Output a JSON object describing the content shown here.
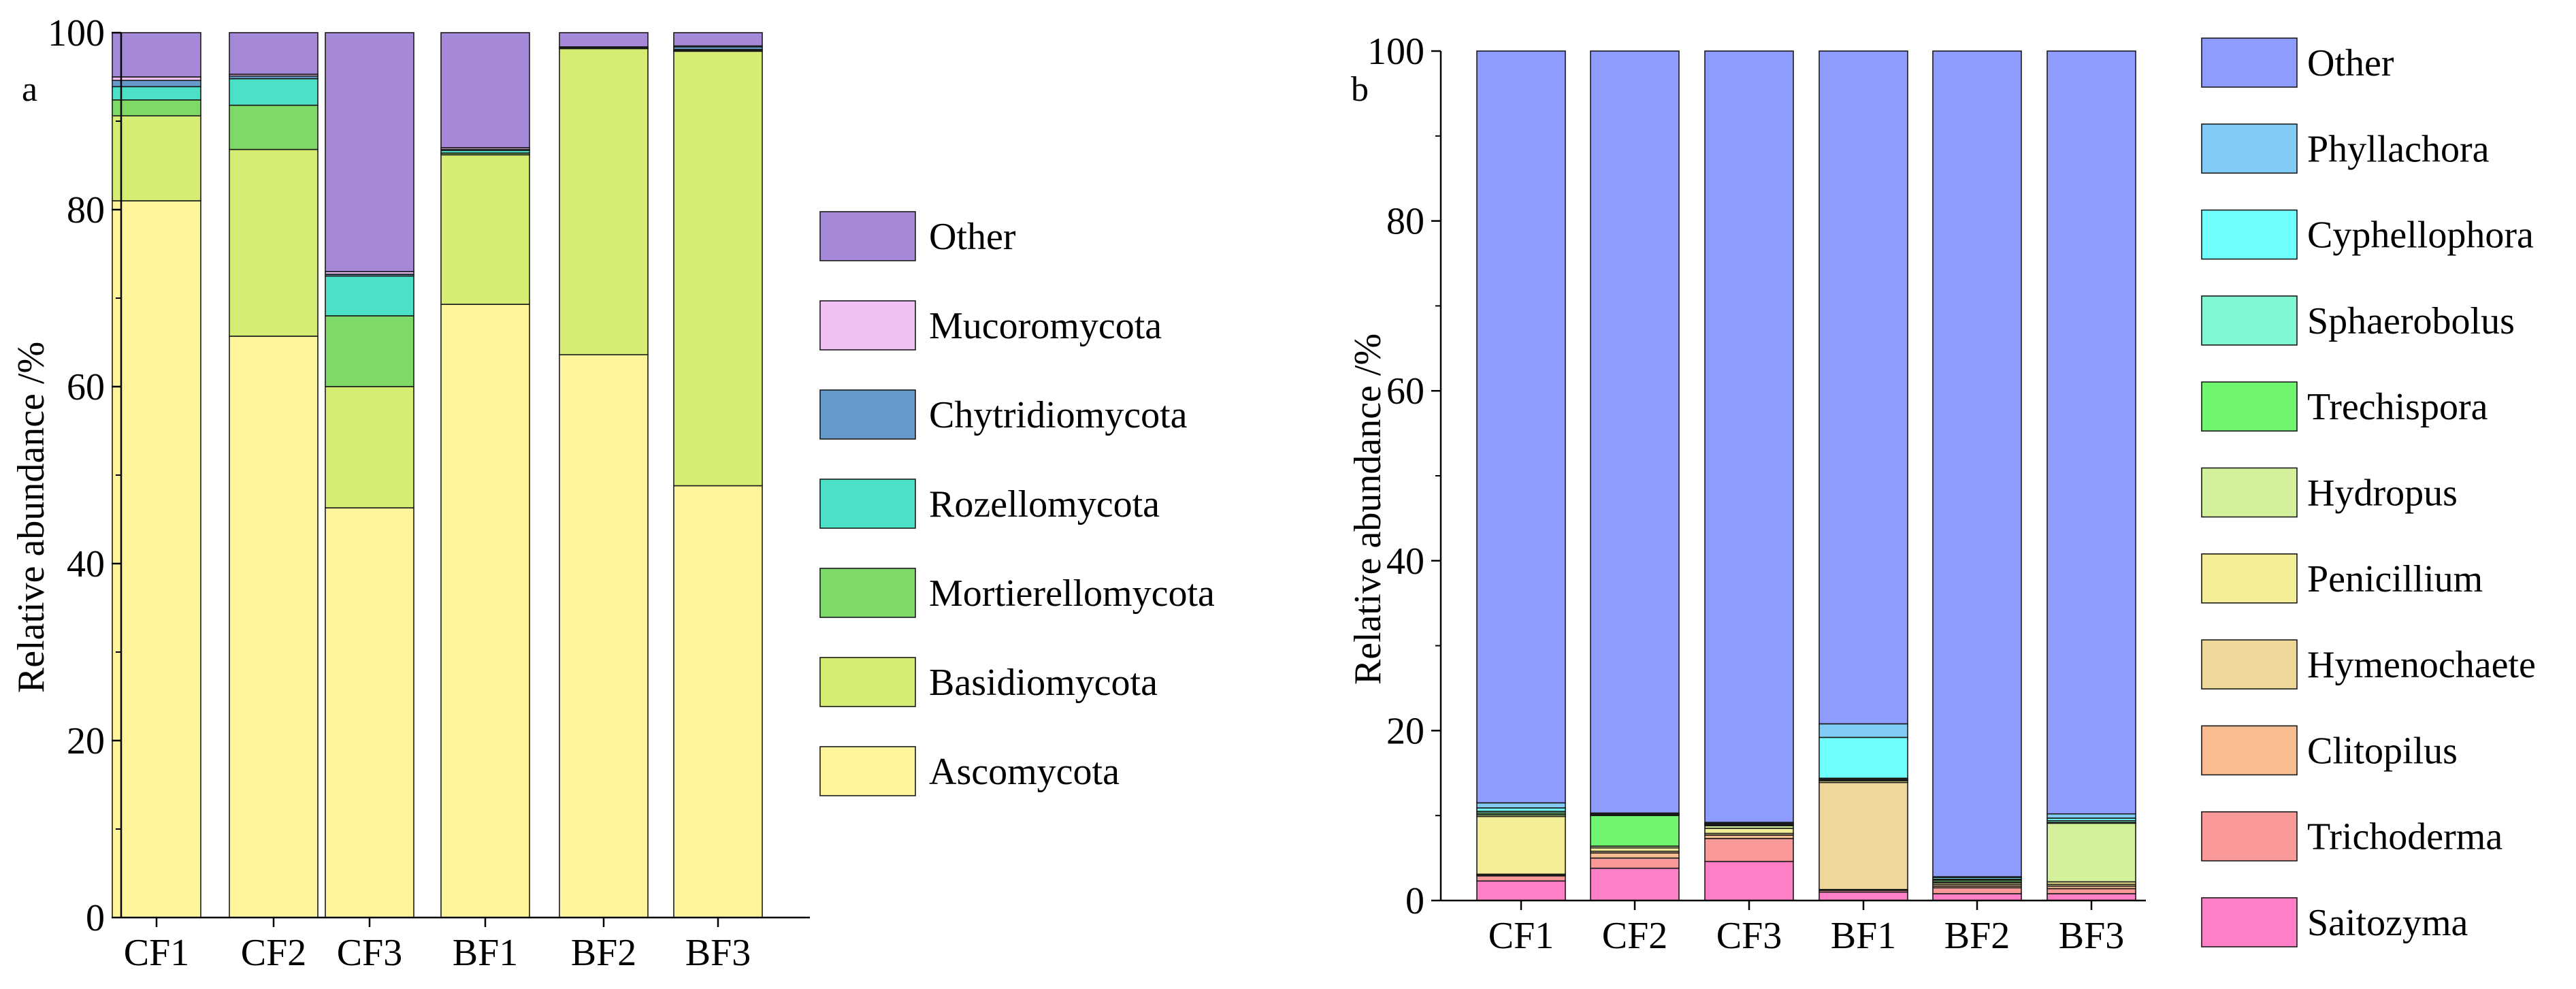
{
  "chart_data": [
    {
      "panel_label": "a",
      "type": "bar",
      "stacked": true,
      "categories": [
        "CF1",
        "CF2",
        "CF3",
        "BF1",
        "BF2",
        "BF3"
      ],
      "ylabel": "Relative abundance /%",
      "xlabel": "",
      "ylim": [
        0,
        100
      ],
      "yticks": [
        "0",
        "20",
        "40",
        "60",
        "80",
        "100"
      ],
      "legend_position": "right",
      "series": [
        {
          "name": "Ascomycota",
          "color": "#fff59d",
          "values": [
            81.0,
            65.7,
            46.3,
            69.3,
            63.6,
            48.8
          ]
        },
        {
          "name": "Basidiomycota",
          "color": "#d4ed72",
          "values": [
            9.6,
            21.1,
            13.7,
            16.9,
            34.6,
            49.1
          ]
        },
        {
          "name": "Mortierellomycota",
          "color": "#7fd966",
          "values": [
            1.8,
            5.0,
            8.0,
            0.2,
            0.0,
            0.1
          ]
        },
        {
          "name": "Rozellomycota",
          "color": "#4de0c8",
          "values": [
            1.5,
            3.0,
            4.5,
            0.3,
            0.0,
            0.1
          ]
        },
        {
          "name": "Chytridiomycota",
          "color": "#6699cc",
          "values": [
            0.7,
            0.3,
            0.2,
            0.1,
            0.1,
            0.3
          ]
        },
        {
          "name": "Mucoromycota",
          "color": "#f0c0f5",
          "values": [
            0.4,
            0.2,
            0.3,
            0.2,
            0.1,
            0.1
          ]
        },
        {
          "name": "Other",
          "color": "#a688d8",
          "values": [
            5.0,
            4.7,
            27.0,
            13.0,
            1.6,
            1.5
          ]
        }
      ]
    },
    {
      "panel_label": "b",
      "type": "bar",
      "stacked": true,
      "categories": [
        "CF1",
        "CF2",
        "CF3",
        "BF1",
        "BF2",
        "BF3"
      ],
      "ylabel": "Relative abundance /%",
      "xlabel": "",
      "ylim": [
        0,
        100
      ],
      "yticks": [
        "0",
        "20",
        "40",
        "60",
        "80",
        "100"
      ],
      "legend_position": "right",
      "series": [
        {
          "name": "Saitozyma",
          "color": "#ff7fc7",
          "values": [
            2.3,
            3.8,
            4.6,
            1.0,
            0.8,
            0.8
          ]
        },
        {
          "name": "Trichoderma",
          "color": "#fa9999",
          "values": [
            0.6,
            1.2,
            2.7,
            0.2,
            0.7,
            0.6
          ]
        },
        {
          "name": "Clitopilus",
          "color": "#f7bd91",
          "values": [
            0.1,
            0.6,
            0.4,
            0.1,
            0.2,
            0.3
          ]
        },
        {
          "name": "Hymenochaete",
          "color": "#efd699",
          "values": [
            0.1,
            0.2,
            0.2,
            12.6,
            0.2,
            0.2
          ]
        },
        {
          "name": "Penicillium",
          "color": "#f2ed96",
          "values": [
            6.8,
            0.4,
            0.6,
            0.2,
            0.2,
            0.3
          ]
        },
        {
          "name": "Hydropus",
          "color": "#d3f09a",
          "values": [
            0.2,
            0.2,
            0.3,
            0.1,
            0.1,
            6.9
          ]
        },
        {
          "name": "Trechispora",
          "color": "#70f570",
          "values": [
            0.2,
            3.6,
            0.1,
            0.1,
            0.2,
            0.1
          ]
        },
        {
          "name": "Sphaerobolus",
          "color": "#7ff7d2",
          "values": [
            0.2,
            0.1,
            0.1,
            0.1,
            0.1,
            0.2
          ]
        },
        {
          "name": "Cyphellophora",
          "color": "#70ffff",
          "values": [
            0.4,
            0.1,
            0.1,
            4.8,
            0.2,
            0.3
          ]
        },
        {
          "name": "Phyllachora",
          "color": "#80ccf7",
          "values": [
            0.6,
            0.1,
            0.1,
            1.6,
            0.1,
            0.5
          ]
        },
        {
          "name": "Other",
          "color": "#8f9cff",
          "values": [
            88.5,
            89.7,
            90.8,
            79.2,
            97.2,
            89.8
          ]
        }
      ]
    }
  ]
}
